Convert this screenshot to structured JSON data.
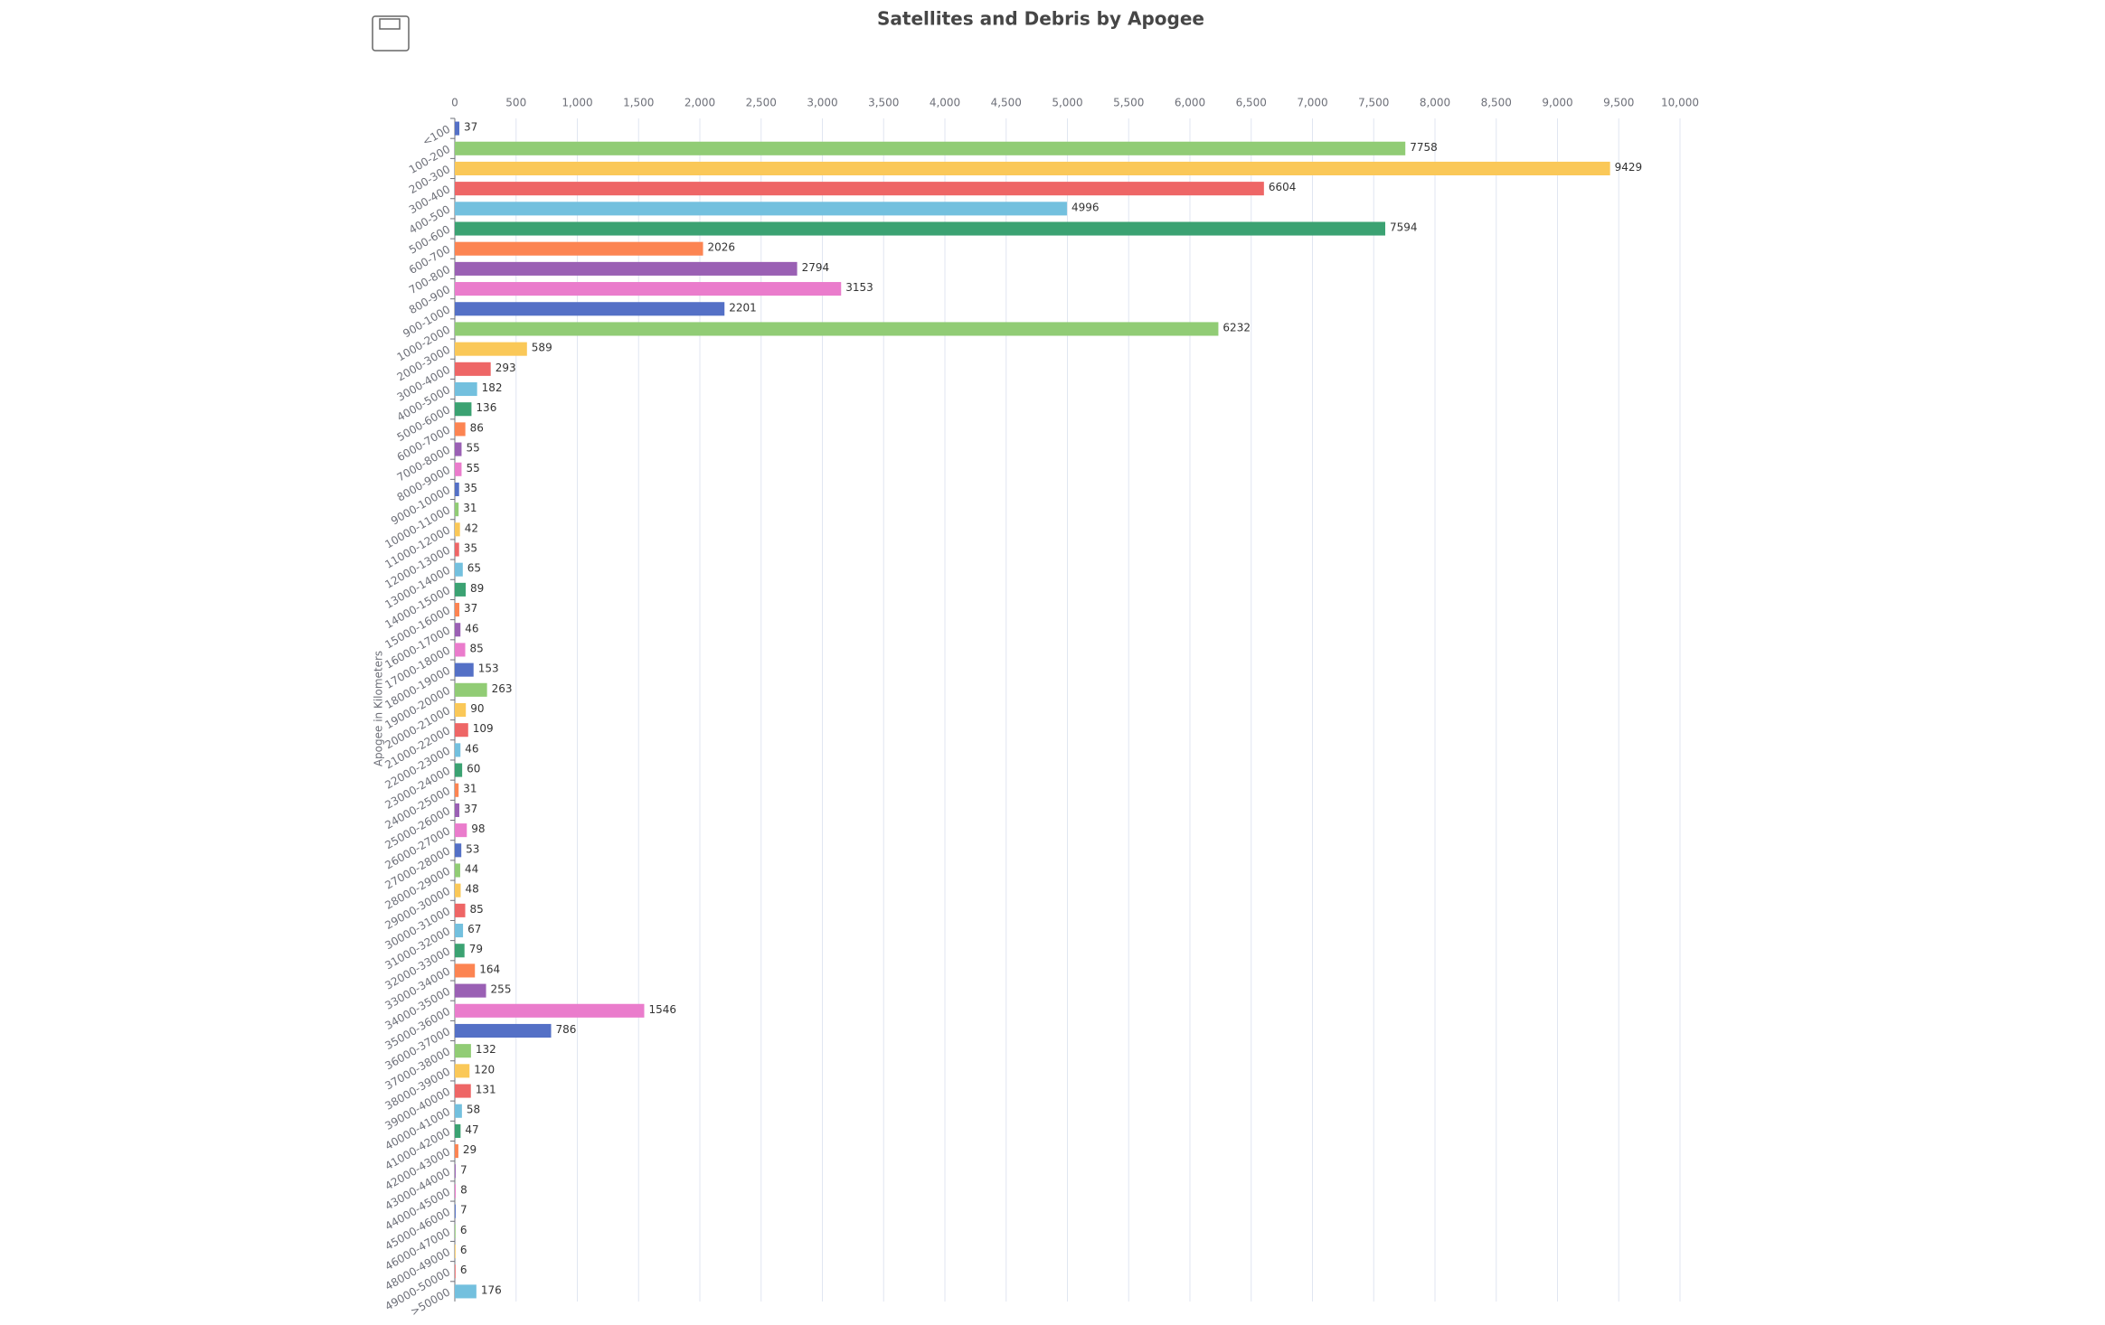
{
  "chart_data": {
    "type": "bar",
    "orientation": "horizontal",
    "title": "Satellites and Debris by Apogee",
    "y_label": "Apogee in Kilometers",
    "categories": [
      "<100",
      "100-200",
      "200-300",
      "300-400",
      "400-500",
      "500-600",
      "600-700",
      "700-800",
      "800-900",
      "900-1000",
      "1000-2000",
      "2000-3000",
      "3000-4000",
      "4000-5000",
      "5000-6000",
      "6000-7000",
      "7000-8000",
      "8000-9000",
      "9000-10000",
      "10000-11000",
      "11000-12000",
      "12000-13000",
      "13000-14000",
      "14000-15000",
      "15000-16000",
      "16000-17000",
      "17000-18000",
      "18000-19000",
      "19000-20000",
      "20000-21000",
      "21000-22000",
      "22000-23000",
      "23000-24000",
      "24000-25000",
      "25000-26000",
      "26000-27000",
      "27000-28000",
      "28000-29000",
      "29000-30000",
      "30000-31000",
      "31000-32000",
      "32000-33000",
      "33000-34000",
      "34000-35000",
      "35000-36000",
      "36000-37000",
      "37000-38000",
      "38000-39000",
      "39000-40000",
      "40000-41000",
      "41000-42000",
      "42000-43000",
      "43000-44000",
      "44000-45000",
      "45000-46000",
      "46000-47000",
      "48000-49000",
      "49000-50000",
      ">50000"
    ],
    "values": [
      37,
      7758,
      9429,
      6604,
      4996,
      7594,
      2026,
      2794,
      3153,
      2201,
      6232,
      589,
      293,
      182,
      136,
      86,
      55,
      55,
      35,
      31,
      42,
      35,
      65,
      89,
      37,
      46,
      85,
      153,
      263,
      90,
      109,
      46,
      60,
      31,
      37,
      98,
      53,
      44,
      48,
      85,
      67,
      79,
      164,
      255,
      1546,
      786,
      132,
      120,
      131,
      58,
      47,
      29,
      7,
      8,
      7,
      6,
      6,
      6,
      176
    ],
    "colors": [
      "#5470c6",
      "#91cc75",
      "#fac858",
      "#ee6666",
      "#73c0de",
      "#3ba272",
      "#fc8452",
      "#9a60b4",
      "#ea7ccc"
    ],
    "xlim": [
      0,
      10000
    ],
    "xticks": [
      0,
      500,
      {
        "value": 1000,
        "label": "1,000"
      },
      {
        "value": 1500,
        "label": "1,500"
      },
      {
        "value": 2000,
        "label": "2,000"
      },
      {
        "value": 2500,
        "label": "2,500"
      },
      {
        "value": 3000,
        "label": "3,000"
      },
      {
        "value": 3500,
        "label": "3,500"
      },
      {
        "value": 4000,
        "label": "4,000"
      },
      {
        "value": 4500,
        "label": "4,500"
      },
      {
        "value": 5000,
        "label": "5,000"
      },
      {
        "value": 5500,
        "label": "5,500"
      },
      {
        "value": 6000,
        "label": "6,000"
      },
      {
        "value": 6500,
        "label": "6,500"
      },
      {
        "value": 7000,
        "label": "7,000"
      },
      {
        "value": 7500,
        "label": "7,500"
      },
      {
        "value": 8000,
        "label": "8,000"
      },
      {
        "value": 8500,
        "label": "8,500"
      },
      {
        "value": 9000,
        "label": "9,000"
      },
      {
        "value": 9500,
        "label": "9,500"
      },
      {
        "value": 10000,
        "label": "10,000"
      }
    ],
    "grid": true
  }
}
